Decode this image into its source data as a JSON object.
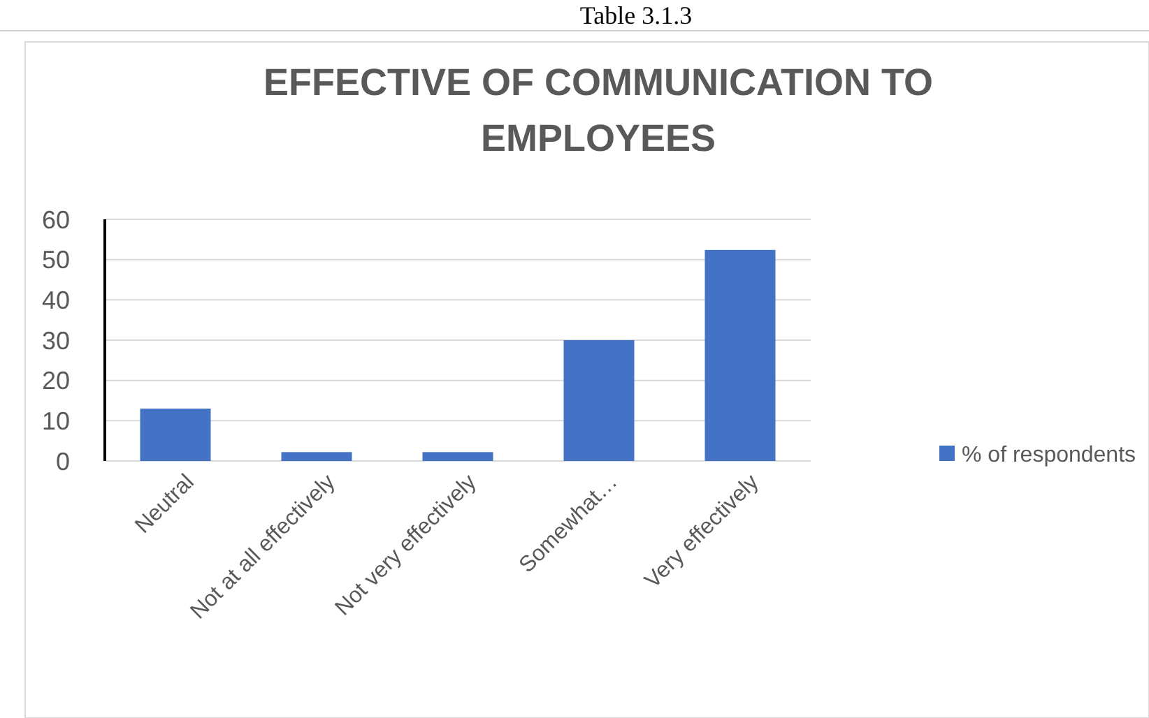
{
  "chart_data": {
    "type": "bar",
    "title": "EFFECTIVE OF COMMUNICATION TO EMPLOYEES",
    "annotations": [
      "Table 3.1.3"
    ],
    "categories": [
      "Neutral",
      "Not at all effectively",
      "Not very effectively",
      "Somewhat…",
      "Very effectively"
    ],
    "series": [
      {
        "name": "% of respondents",
        "color": "#4472c4",
        "values": [
          13,
          2.2,
          2.2,
          30,
          52.4
        ]
      }
    ],
    "ylim": [
      0,
      60
    ],
    "yticks": [
      0,
      10,
      20,
      30,
      40,
      50,
      60
    ],
    "grid": "y",
    "legend": "right"
  }
}
